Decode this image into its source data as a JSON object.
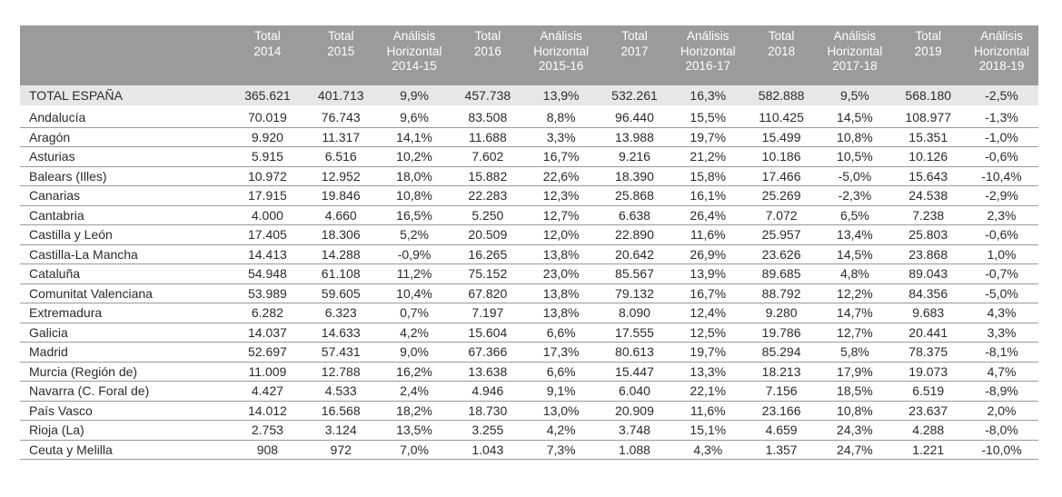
{
  "columns": [
    [
      "Total",
      "2014"
    ],
    [
      "Total",
      "2015"
    ],
    [
      "Análisis",
      "Horizontal",
      "2014-15"
    ],
    [
      "Total",
      "2016"
    ],
    [
      "Análisis",
      "Horizontal",
      "2015-16"
    ],
    [
      "Total",
      "2017"
    ],
    [
      "Análisis",
      "Horizontal",
      "2016-17"
    ],
    [
      "Total",
      "2018"
    ],
    [
      "Análisis",
      "Horizontal",
      "2017-18"
    ],
    [
      "Total",
      "2019"
    ],
    [
      "Análisis",
      "Horizontal",
      "2018-19"
    ]
  ],
  "rows": [
    [
      "TOTAL ESPAÑA",
      "365.621",
      "401.713",
      "9,9%",
      "457.738",
      "13,9%",
      "532.261",
      "16,3%",
      "582.888",
      "9,5%",
      "568.180",
      "-2,5%"
    ],
    [
      "Andalucía",
      "70.019",
      "76.743",
      "9,6%",
      "83.508",
      "8,8%",
      "96.440",
      "15,5%",
      "110.425",
      "14,5%",
      "108.977",
      "-1,3%"
    ],
    [
      "Aragón",
      "9.920",
      "11.317",
      "14,1%",
      "11.688",
      "3,3%",
      "13.988",
      "19,7%",
      "15.499",
      "10,8%",
      "15.351",
      "-1,0%"
    ],
    [
      "Asturias",
      "5.915",
      "6.516",
      "10,2%",
      "7.602",
      "16,7%",
      "9.216",
      "21,2%",
      "10.186",
      "10,5%",
      "10.126",
      "-0,6%"
    ],
    [
      "Balears (Illes)",
      "10.972",
      "12.952",
      "18,0%",
      "15.882",
      "22,6%",
      "18.390",
      "15,8%",
      "17.466",
      "-5,0%",
      "15.643",
      "-10,4%"
    ],
    [
      "Canarias",
      "17.915",
      "19.846",
      "10,8%",
      "22.283",
      "12,3%",
      "25.868",
      "16,1%",
      "25.269",
      "-2,3%",
      "24.538",
      "-2,9%"
    ],
    [
      "Cantabria",
      "4.000",
      "4.660",
      "16,5%",
      "5.250",
      "12,7%",
      "6.638",
      "26,4%",
      "7.072",
      "6,5%",
      "7.238",
      "2,3%"
    ],
    [
      "Castilla y León",
      "17.405",
      "18.306",
      "5,2%",
      "20.509",
      "12,0%",
      "22.890",
      "11,6%",
      "25.957",
      "13,4%",
      "25.803",
      "-0,6%"
    ],
    [
      "Castilla-La Mancha",
      "14.413",
      "14.288",
      "-0,9%",
      "16.265",
      "13,8%",
      "20.642",
      "26,9%",
      "23.626",
      "14,5%",
      "23.868",
      "1,0%"
    ],
    [
      "Cataluña",
      "54.948",
      "61.108",
      "11,2%",
      "75.152",
      "23,0%",
      "85.567",
      "13,9%",
      "89.685",
      "4,8%",
      "89.043",
      "-0,7%"
    ],
    [
      "Comunitat Valenciana",
      "53.989",
      "59.605",
      "10,4%",
      "67.820",
      "13,8%",
      "79.132",
      "16,7%",
      "88.792",
      "12,2%",
      "84.356",
      "-5,0%"
    ],
    [
      "Extremadura",
      "6.282",
      "6.323",
      "0,7%",
      "7.197",
      "13,8%",
      "8.090",
      "12,4%",
      "9.280",
      "14,7%",
      "9.683",
      "4,3%"
    ],
    [
      "Galicia",
      "14.037",
      "14.633",
      "4,2%",
      "15.604",
      "6,6%",
      "17.555",
      "12,5%",
      "19.786",
      "12,7%",
      "20.441",
      "3,3%"
    ],
    [
      "Madrid",
      "52.697",
      "57.431",
      "9,0%",
      "67.366",
      "17,3%",
      "80.613",
      "19,7%",
      "85.294",
      "5,8%",
      "78.375",
      "-8,1%"
    ],
    [
      "Murcia (Región de)",
      "11.009",
      "12.788",
      "16,2%",
      "13.638",
      "6,6%",
      "15.447",
      "13,3%",
      "18.213",
      "17,9%",
      "19.073",
      "4,7%"
    ],
    [
      "Navarra (C. Foral de)",
      "4.427",
      "4.533",
      "2,4%",
      "4.946",
      "9,1%",
      "6.040",
      "22,1%",
      "7.156",
      "18,5%",
      "6.519",
      "-8,9%"
    ],
    [
      "País Vasco",
      "14.012",
      "16.568",
      "18,2%",
      "18.730",
      "13,0%",
      "20.909",
      "11,6%",
      "23.166",
      "10,8%",
      "23.637",
      "2,0%"
    ],
    [
      "Rioja (La)",
      "2.753",
      "3.124",
      "13,5%",
      "3.255",
      "4,2%",
      "3.748",
      "15,1%",
      "4.659",
      "24,3%",
      "4.288",
      "-8,0%"
    ],
    [
      "Ceuta y Melilla",
      "908",
      "972",
      "7,0%",
      "1.043",
      "7,3%",
      "1.088",
      "4,3%",
      "1.357",
      "24,7%",
      "1.221",
      "-10,0%"
    ]
  ]
}
